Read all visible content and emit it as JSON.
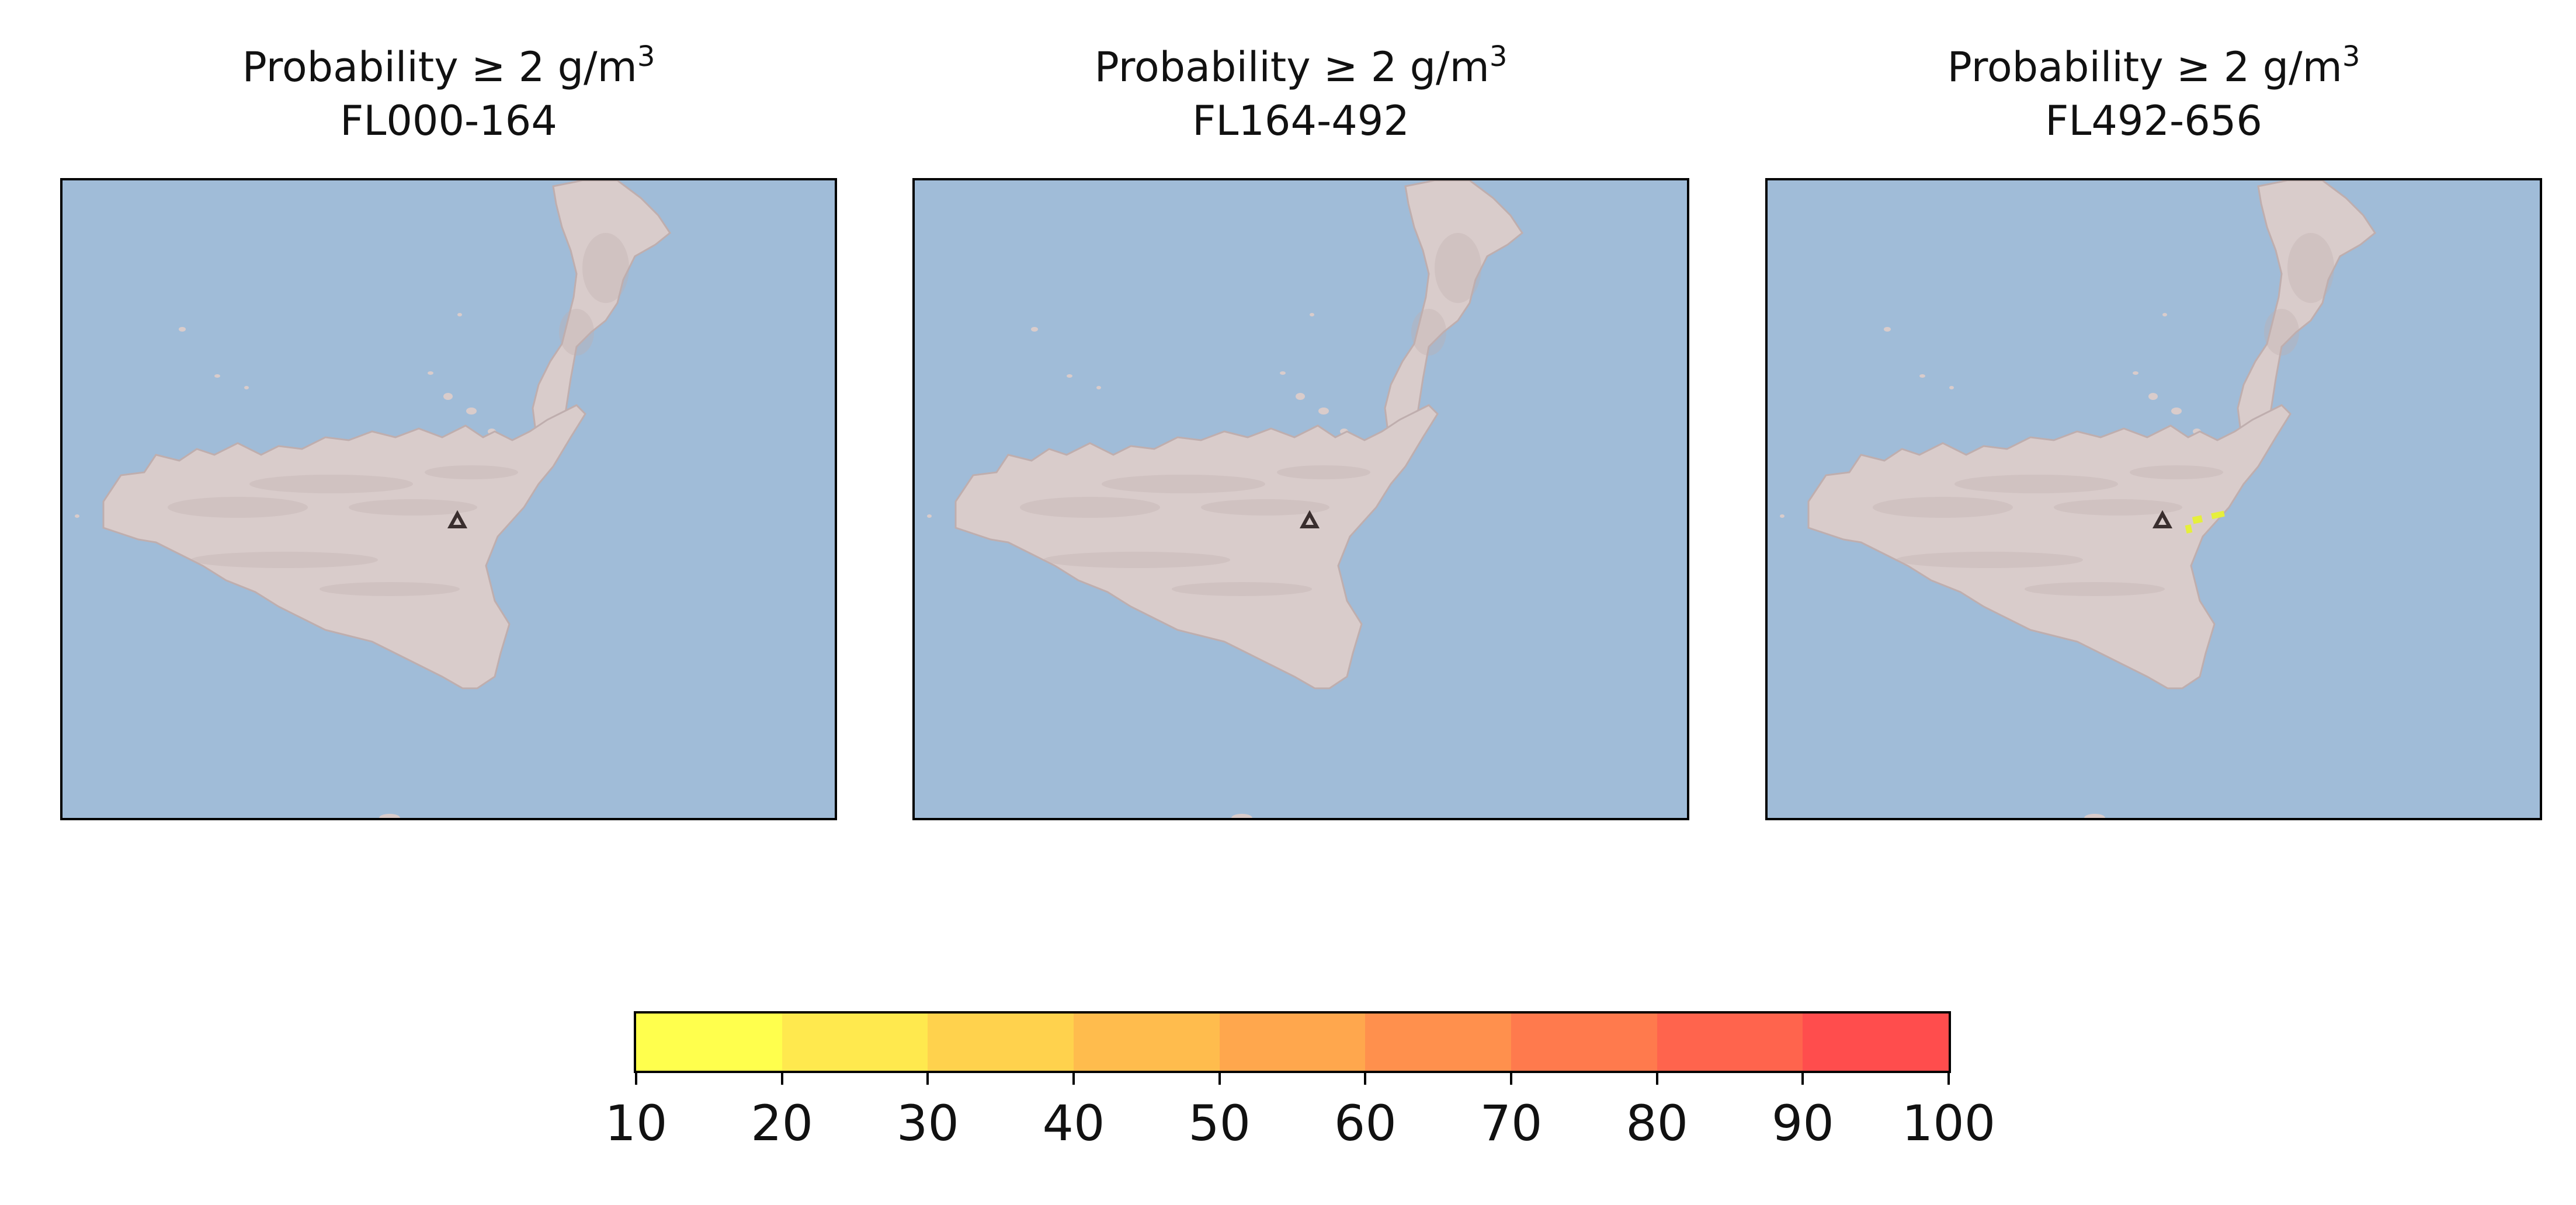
{
  "panels": [
    {
      "title_main": "Probability ≥ 2 g/m",
      "title_sup": "3",
      "subtitle": "FL000-164",
      "plume": false
    },
    {
      "title_main": "Probability ≥ 2 g/m",
      "title_sup": "3",
      "subtitle": "FL164-492",
      "plume": false
    },
    {
      "title_main": "Probability ≥ 2 g/m",
      "title_sup": "3",
      "subtitle": "FL492-656",
      "plume": true
    }
  ],
  "map_style": {
    "sea_color": "#a0bcd8",
    "land_color": "#d9cccb",
    "land_relief_color": "#bfaeae",
    "volcano_marker_color": "#3a2e2e",
    "plume_color": "#e6ef3c"
  },
  "colorbar": {
    "bounds": [
      10,
      20,
      30,
      40,
      50,
      60,
      70,
      80,
      90,
      100
    ],
    "tick_labels": [
      "10",
      "20",
      "30",
      "40",
      "50",
      "60",
      "70",
      "80",
      "90",
      "100"
    ],
    "colors": [
      "#ffff4d",
      "#ffe94e",
      "#ffd24d",
      "#ffbc4d",
      "#ffa74d",
      "#ff904d",
      "#ff7a4d",
      "#ff644d",
      "#ff4d4d"
    ]
  }
}
